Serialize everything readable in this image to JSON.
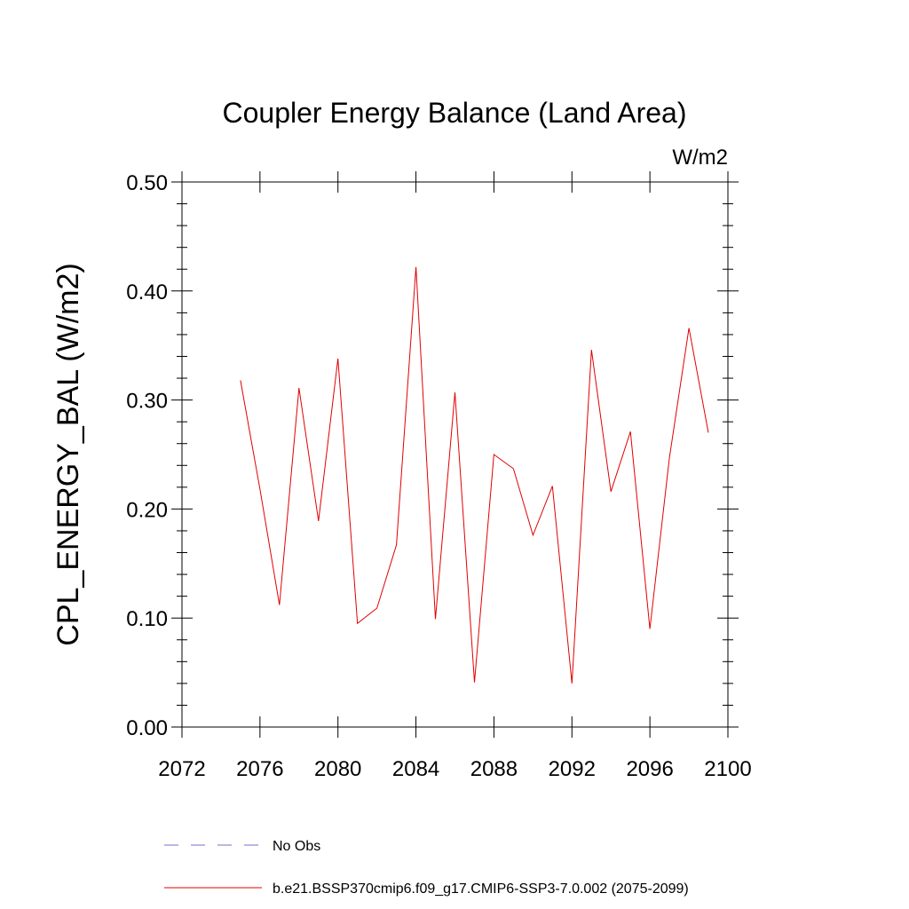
{
  "chart_data": {
    "type": "line",
    "title": "Coupler Energy Balance (Land Area)",
    "units": "W/m2",
    "ylabel": "CPL_ENERGY_BAL  (W/m2)",
    "xlabel": "",
    "xlim": [
      2072,
      2100
    ],
    "ylim": [
      0.0,
      0.5
    ],
    "x_ticks": [
      "2072",
      "2076",
      "2080",
      "2084",
      "2088",
      "2092",
      "2096",
      "2100"
    ],
    "x_tick_values": [
      2072,
      2076,
      2080,
      2084,
      2088,
      2092,
      2096,
      2100
    ],
    "y_ticks": [
      "0.00",
      "0.10",
      "0.20",
      "0.30",
      "0.40",
      "0.50"
    ],
    "y_tick_values": [
      0.0,
      0.1,
      0.2,
      0.3,
      0.4,
      0.5
    ],
    "legend_position": "bottom",
    "series": [
      {
        "name": "b.e21.BSSP370cmip6.f09_g17.CMIP6-SSP3-7.0.002 (2075-2099)",
        "color": "#e00000",
        "style": "solid",
        "x": [
          2075,
          2076,
          2077,
          2078,
          2079,
          2080,
          2081,
          2082,
          2083,
          2084,
          2085,
          2086,
          2087,
          2088,
          2089,
          2090,
          2091,
          2092,
          2093,
          2094,
          2095,
          2096,
          2097,
          2098,
          2099
        ],
        "values": [
          0.318,
          0.218,
          0.112,
          0.311,
          0.189,
          0.338,
          0.095,
          0.109,
          0.167,
          0.422,
          0.099,
          0.307,
          0.041,
          0.25,
          0.237,
          0.176,
          0.221,
          0.04,
          0.346,
          0.216,
          0.271,
          0.09,
          0.247,
          0.366,
          0.27
        ]
      },
      {
        "name": "No Obs",
        "color": "#7070c8",
        "style": "dashed",
        "x": [],
        "values": []
      }
    ]
  }
}
